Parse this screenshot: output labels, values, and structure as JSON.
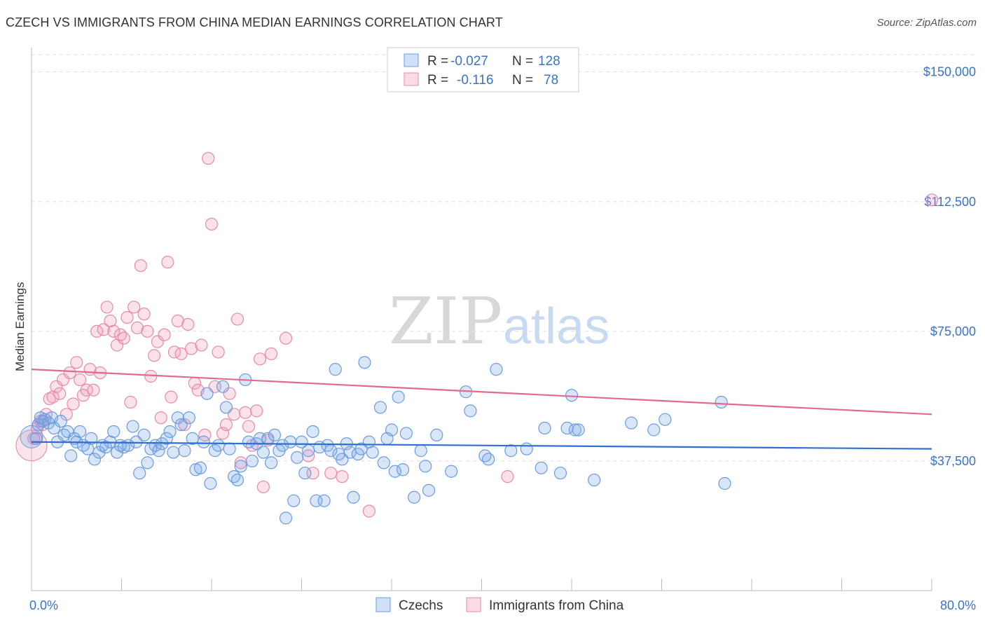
{
  "title": "CZECH VS IMMIGRANTS FROM CHINA MEDIAN EARNINGS CORRELATION CHART",
  "source": "Source: ZipAtlas.com",
  "watermark": {
    "part1": "ZIP",
    "part2": "atlas"
  },
  "colors": {
    "blue_fill": "rgba(120,165,230,0.28)",
    "blue_stroke": "#6b9be0",
    "blue_line": "#2f6fd0",
    "pink_fill": "rgba(240,150,180,0.28)",
    "pink_stroke": "#e68aaa",
    "pink_line": "#e06a93",
    "axis_text": "#3a72c4",
    "grid": "#dddddd"
  },
  "legend": {
    "rows": [
      {
        "r_label": "R = ",
        "r_value": "-0.027",
        "n_label": "N = ",
        "n_value": "128",
        "series": "blue"
      },
      {
        "r_label": "R = ",
        "r_value": "-0.116",
        "n_label": "N = ",
        "n_value": "78",
        "series": "pink"
      }
    ]
  },
  "chart_data": {
    "type": "scatter",
    "title": "CZECH VS IMMIGRANTS FROM CHINA MEDIAN EARNINGS CORRELATION CHART",
    "xlabel": "",
    "ylabel": "Median Earnings",
    "xlim": [
      0,
      80
    ],
    "ylim": [
      0,
      155000
    ],
    "x_tick_labels": [
      "0.0%",
      "80.0%"
    ],
    "y_ticks": [
      {
        "value": 37500,
        "label": "$37,500"
      },
      {
        "value": 75000,
        "label": "$75,000"
      },
      {
        "value": 112500,
        "label": "$112,500"
      },
      {
        "value": 150000,
        "label": "$150,000"
      }
    ],
    "grid": true,
    "legend_position": "top-center",
    "series": [
      {
        "name": "Czechs",
        "color": "blue",
        "trend": {
          "x": [
            0,
            80
          ],
          "y": [
            43000,
            41000
          ]
        },
        "points": [
          [
            0.4,
            44000
          ],
          [
            0.6,
            48000
          ],
          [
            0.8,
            50000
          ],
          [
            1.0,
            49000
          ],
          [
            1.2,
            49500
          ],
          [
            1.5,
            48500
          ],
          [
            1.8,
            50000
          ],
          [
            2.0,
            47000
          ],
          [
            2.3,
            43000
          ],
          [
            2.6,
            49000
          ],
          [
            2.9,
            45000
          ],
          [
            3.2,
            46000
          ],
          [
            3.5,
            39000
          ],
          [
            3.8,
            44000
          ],
          [
            4.0,
            43000
          ],
          [
            4.3,
            46000
          ],
          [
            4.6,
            42000
          ],
          [
            5.0,
            41000
          ],
          [
            5.3,
            44000
          ],
          [
            5.6,
            38000
          ],
          [
            6.0,
            40000
          ],
          [
            6.3,
            42000
          ],
          [
            6.6,
            41500
          ],
          [
            7.0,
            43000
          ],
          [
            7.3,
            46000
          ],
          [
            7.6,
            40000
          ],
          [
            7.9,
            42000
          ],
          [
            8.2,
            41500
          ],
          [
            8.6,
            42000
          ],
          [
            9.0,
            47500
          ],
          [
            9.3,
            43000
          ],
          [
            9.6,
            34000
          ],
          [
            10.0,
            45000
          ],
          [
            10.3,
            37000
          ],
          [
            10.6,
            41000
          ],
          [
            11.0,
            42000
          ],
          [
            11.3,
            40500
          ],
          [
            11.6,
            42500
          ],
          [
            12.0,
            44000
          ],
          [
            12.3,
            46000
          ],
          [
            12.6,
            40000
          ],
          [
            13.0,
            50000
          ],
          [
            13.3,
            48000
          ],
          [
            13.6,
            40500
          ],
          [
            14.0,
            50000
          ],
          [
            14.3,
            44000
          ],
          [
            14.6,
            35000
          ],
          [
            15.0,
            35500
          ],
          [
            15.3,
            43000
          ],
          [
            15.6,
            57000
          ],
          [
            15.9,
            31000
          ],
          [
            16.3,
            40500
          ],
          [
            16.6,
            42000
          ],
          [
            17.0,
            59000
          ],
          [
            17.3,
            53000
          ],
          [
            17.6,
            41000
          ],
          [
            18.0,
            33000
          ],
          [
            18.3,
            32000
          ],
          [
            18.6,
            36000
          ],
          [
            19.0,
            61000
          ],
          [
            19.3,
            43000
          ],
          [
            19.6,
            37500
          ],
          [
            20.0,
            42500
          ],
          [
            20.3,
            44000
          ],
          [
            20.6,
            40000
          ],
          [
            21.0,
            44000
          ],
          [
            21.3,
            37000
          ],
          [
            21.6,
            45000
          ],
          [
            22.0,
            40500
          ],
          [
            22.3,
            42000
          ],
          [
            22.6,
            21000
          ],
          [
            23.0,
            43000
          ],
          [
            23.3,
            26000
          ],
          [
            23.6,
            38500
          ],
          [
            24.0,
            43000
          ],
          [
            24.3,
            34000
          ],
          [
            24.6,
            40500
          ],
          [
            25.0,
            46000
          ],
          [
            25.3,
            26000
          ],
          [
            25.6,
            41500
          ],
          [
            26.0,
            26000
          ],
          [
            26.3,
            42000
          ],
          [
            26.6,
            40500
          ],
          [
            27.0,
            64000
          ],
          [
            27.3,
            39500
          ],
          [
            27.6,
            38000
          ],
          [
            28.0,
            42500
          ],
          [
            28.3,
            40000
          ],
          [
            28.6,
            27000
          ],
          [
            29.0,
            39500
          ],
          [
            29.3,
            41000
          ],
          [
            29.6,
            66000
          ],
          [
            30.0,
            43000
          ],
          [
            30.3,
            40000
          ],
          [
            31.0,
            53000
          ],
          [
            31.3,
            37000
          ],
          [
            31.6,
            44000
          ],
          [
            32.0,
            46500
          ],
          [
            32.3,
            34500
          ],
          [
            32.6,
            56000
          ],
          [
            33.0,
            35000
          ],
          [
            33.3,
            45500
          ],
          [
            34.0,
            27000
          ],
          [
            34.6,
            40500
          ],
          [
            35.0,
            36000
          ],
          [
            35.3,
            29000
          ],
          [
            36.0,
            45000
          ],
          [
            37.3,
            34500
          ],
          [
            38.6,
            57500
          ],
          [
            39.0,
            52000
          ],
          [
            40.3,
            39000
          ],
          [
            40.6,
            38000
          ],
          [
            41.3,
            64000
          ],
          [
            42.6,
            40500
          ],
          [
            44.0,
            41000
          ],
          [
            45.3,
            35500
          ],
          [
            45.6,
            47000
          ],
          [
            47.0,
            34000
          ],
          [
            47.6,
            47000
          ],
          [
            48.0,
            56500
          ],
          [
            48.3,
            46500
          ],
          [
            48.6,
            46500
          ],
          [
            50.0,
            32000
          ],
          [
            53.3,
            48500
          ],
          [
            55.3,
            46500
          ],
          [
            56.3,
            49500
          ],
          [
            61.3,
            54500
          ],
          [
            61.6,
            31000
          ]
        ]
      },
      {
        "name": "Immigrants from China",
        "color": "pink",
        "trend": {
          "x": [
            0,
            80
          ],
          "y": [
            64000,
            51000
          ]
        },
        "points": [
          [
            0.2,
            44000
          ],
          [
            0.5,
            47000
          ],
          [
            0.8,
            49000
          ],
          [
            1.0,
            48000
          ],
          [
            1.3,
            51000
          ],
          [
            1.6,
            55500
          ],
          [
            1.9,
            56000
          ],
          [
            2.2,
            59000
          ],
          [
            2.5,
            57000
          ],
          [
            2.8,
            61000
          ],
          [
            3.1,
            51000
          ],
          [
            3.4,
            63000
          ],
          [
            3.7,
            54000
          ],
          [
            4.0,
            66000
          ],
          [
            4.3,
            61000
          ],
          [
            4.6,
            56500
          ],
          [
            4.9,
            58000
          ],
          [
            5.2,
            64000
          ],
          [
            5.5,
            58000
          ],
          [
            5.8,
            75000
          ],
          [
            6.1,
            63000
          ],
          [
            6.4,
            75500
          ],
          [
            6.7,
            82000
          ],
          [
            7.0,
            78000
          ],
          [
            7.3,
            75000
          ],
          [
            7.6,
            71000
          ],
          [
            7.9,
            74000
          ],
          [
            8.2,
            73000
          ],
          [
            8.5,
            79000
          ],
          [
            8.8,
            54500
          ],
          [
            9.1,
            82000
          ],
          [
            9.4,
            76000
          ],
          [
            9.7,
            94000
          ],
          [
            10.0,
            80000
          ],
          [
            10.3,
            75000
          ],
          [
            10.6,
            62000
          ],
          [
            10.9,
            68000
          ],
          [
            11.2,
            72000
          ],
          [
            11.5,
            50000
          ],
          [
            11.8,
            74000
          ],
          [
            12.1,
            95000
          ],
          [
            12.4,
            56000
          ],
          [
            12.7,
            69000
          ],
          [
            13.0,
            78000
          ],
          [
            13.3,
            68500
          ],
          [
            13.6,
            48000
          ],
          [
            13.9,
            77000
          ],
          [
            14.2,
            70000
          ],
          [
            14.5,
            60000
          ],
          [
            14.8,
            58000
          ],
          [
            15.1,
            71000
          ],
          [
            15.4,
            45000
          ],
          [
            15.7,
            125000
          ],
          [
            16.0,
            106000
          ],
          [
            16.3,
            59000
          ],
          [
            16.6,
            69000
          ],
          [
            17.0,
            45500
          ],
          [
            17.3,
            48000
          ],
          [
            17.6,
            57000
          ],
          [
            18.0,
            51000
          ],
          [
            18.3,
            78500
          ],
          [
            18.6,
            37000
          ],
          [
            19.0,
            51500
          ],
          [
            19.3,
            47500
          ],
          [
            19.6,
            42000
          ],
          [
            20.0,
            52000
          ],
          [
            20.3,
            67000
          ],
          [
            20.6,
            30000
          ],
          [
            21.0,
            43500
          ],
          [
            21.3,
            68500
          ],
          [
            22.6,
            73000
          ],
          [
            24.6,
            39000
          ],
          [
            25.0,
            34000
          ],
          [
            26.6,
            34000
          ],
          [
            27.6,
            33000
          ],
          [
            30.0,
            23000
          ],
          [
            42.3,
            33000
          ],
          [
            80.0,
            113000
          ]
        ]
      }
    ]
  },
  "bottom_legend": {
    "items": [
      {
        "label": "Czechs",
        "series": "blue"
      },
      {
        "label": "Immigrants from China",
        "series": "pink"
      }
    ]
  }
}
